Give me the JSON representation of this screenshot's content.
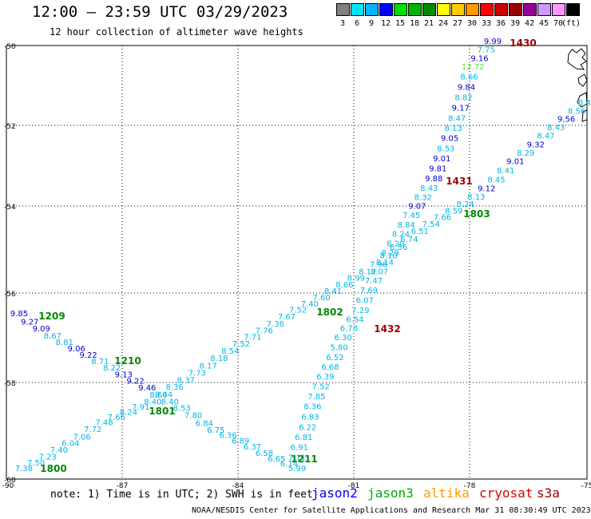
{
  "header": {
    "title": "12:00 – 23:59 UTC 03/29/2023",
    "subtitle": "12 hour collection of altimeter wave heights"
  },
  "legend": {
    "unit": "(ft)",
    "items": [
      {
        "label": "3",
        "color": "#808080"
      },
      {
        "label": "6",
        "color": "#00e5ff"
      },
      {
        "label": "9",
        "color": "#00b4ff"
      },
      {
        "label": "12",
        "color": "#0000ff"
      },
      {
        "label": "15",
        "color": "#00dd00"
      },
      {
        "label": "18",
        "color": "#00b400"
      },
      {
        "label": "21",
        "color": "#008800"
      },
      {
        "label": "24",
        "color": "#ffff00"
      },
      {
        "label": "27",
        "color": "#ffcc00"
      },
      {
        "label": "30",
        "color": "#ff9900"
      },
      {
        "label": "33",
        "color": "#ff0000"
      },
      {
        "label": "36",
        "color": "#cc0000"
      },
      {
        "label": "39",
        "color": "#990000"
      },
      {
        "label": "42",
        "color": "#990099"
      },
      {
        "label": "45",
        "color": "#cc99ff"
      },
      {
        "label": "70",
        "color": "#ff99ff"
      },
      {
        "label": "",
        "color": "#000000"
      }
    ]
  },
  "axes": {
    "lat_labels": [
      "-50",
      "-52",
      "-54",
      "-56",
      "-58",
      "-60"
    ],
    "lon_labels": [
      "-90",
      "-87",
      "-84",
      "-81",
      "-78",
      "-75"
    ]
  },
  "tracks": [
    {
      "color": "#00b4e6",
      "points": [
        [
          "9.99",
          "#0000cc"
        ],
        [
          "7.75",
          ""
        ],
        [
          "9.16",
          "#0000cc"
        ],
        [
          "12.72",
          "#66dd33"
        ],
        [
          "8.66",
          ""
        ],
        [
          "9.84",
          "#0000cc"
        ],
        [
          "8.82",
          ""
        ],
        [
          "9.17",
          "#0000cc"
        ],
        [
          "8.47",
          ""
        ],
        [
          "8.13",
          ""
        ],
        [
          "9.05",
          "#0000cc"
        ],
        [
          "8.53",
          ""
        ],
        [
          "9.01",
          "#0000cc"
        ],
        [
          "9.81",
          "#0000cc"
        ],
        [
          "9.88",
          "#0000cc"
        ],
        [
          "8.43",
          ""
        ],
        [
          "8.32",
          ""
        ],
        [
          "9.07",
          "#0000cc"
        ],
        [
          "7.45",
          ""
        ],
        [
          "8.84",
          ""
        ],
        [
          "8.24",
          ""
        ],
        [
          "8.20",
          ""
        ],
        [
          "8.29",
          ""
        ],
        [
          "8.14",
          ""
        ],
        [
          "8.07",
          ""
        ],
        [
          "7.47",
          ""
        ],
        [
          "7.69",
          ""
        ],
        [
          "6.07",
          ""
        ],
        [
          "7.29",
          ""
        ],
        [
          "6.54",
          ""
        ],
        [
          "6.78",
          ""
        ],
        [
          "6.30",
          ""
        ],
        [
          "5.80",
          ""
        ],
        [
          "6.52",
          ""
        ],
        [
          "6.68",
          ""
        ],
        [
          "6.39",
          ""
        ],
        [
          "7.52",
          ""
        ],
        [
          "7.85",
          ""
        ],
        [
          "8.36",
          ""
        ],
        [
          "6.83",
          ""
        ],
        [
          "6.22",
          ""
        ],
        [
          "6.81",
          ""
        ],
        [
          "6.91",
          ""
        ],
        [
          "7.11",
          ""
        ],
        [
          "5.99",
          ""
        ]
      ]
    },
    {
      "color": "#00b4e6",
      "points": [
        [
          "8.45",
          ""
        ],
        [
          "8.56",
          ""
        ],
        [
          "9.56",
          "#0000cc"
        ],
        [
          "8.43",
          ""
        ],
        [
          "8.47",
          ""
        ],
        [
          "9.32",
          "#0000cc"
        ],
        [
          "8.29",
          ""
        ],
        [
          "9.01",
          "#0000cc"
        ],
        [
          "8.41",
          ""
        ],
        [
          "8.45",
          ""
        ],
        [
          "9.12",
          "#0000cc"
        ],
        [
          "8.13",
          ""
        ],
        [
          "8.24",
          ""
        ],
        [
          "8.59",
          ""
        ],
        [
          "7.66",
          ""
        ],
        [
          "7.54",
          ""
        ],
        [
          "6.51",
          ""
        ],
        [
          "6.74",
          ""
        ],
        [
          "6.56",
          ""
        ],
        [
          "8.10",
          ""
        ],
        [
          "7.96",
          ""
        ],
        [
          "8.12",
          ""
        ],
        [
          "8.99",
          ""
        ],
        [
          "8.66",
          ""
        ],
        [
          "8.41",
          ""
        ],
        [
          "7.60",
          ""
        ],
        [
          "7.40",
          ""
        ],
        [
          "7.52",
          ""
        ],
        [
          "7.67",
          ""
        ],
        [
          "7.36",
          ""
        ],
        [
          "7.76",
          ""
        ],
        [
          "7.71",
          ""
        ],
        [
          "7.52",
          ""
        ],
        [
          "8.54",
          ""
        ],
        [
          "8.18",
          ""
        ],
        [
          "8.17",
          ""
        ],
        [
          "7.73",
          ""
        ],
        [
          "8.37",
          ""
        ],
        [
          "8.36",
          ""
        ],
        [
          "8.44",
          ""
        ],
        [
          "8.40",
          ""
        ],
        [
          "7.91",
          ""
        ],
        [
          "8.24",
          ""
        ],
        [
          "7.66",
          ""
        ],
        [
          "7.48",
          ""
        ],
        [
          "7.72",
          ""
        ],
        [
          "7.06",
          ""
        ],
        [
          "6.04",
          ""
        ],
        [
          "7.40",
          ""
        ],
        [
          "7.23",
          ""
        ],
        [
          "7.50",
          ""
        ],
        [
          "7.38",
          ""
        ]
      ]
    },
    {
      "color": "#00b4e6",
      "points": [
        [
          "9.85",
          "#0000cc"
        ],
        [
          "9.27",
          "#0000cc"
        ],
        [
          "9.09",
          "#0000cc"
        ],
        [
          "8.67",
          ""
        ],
        [
          "8.81",
          ""
        ],
        [
          "9.06",
          "#0000cc"
        ],
        [
          "9.22",
          "#0000cc"
        ],
        [
          "8.71",
          ""
        ],
        [
          "8.22",
          ""
        ],
        [
          "9.13",
          "#0000cc"
        ],
        [
          "9.22",
          "#0000cc"
        ],
        [
          "9.46",
          "#0000cc"
        ],
        [
          "8.60",
          ""
        ],
        [
          "8.40",
          ""
        ],
        [
          "8.53",
          ""
        ],
        [
          "7.80",
          ""
        ],
        [
          "6.84",
          ""
        ],
        [
          "6.75",
          ""
        ],
        [
          "6.36",
          ""
        ],
        [
          "6.89",
          ""
        ],
        [
          "6.37",
          ""
        ],
        [
          "6.58",
          ""
        ],
        [
          "6.65",
          ""
        ],
        [
          "6.14",
          ""
        ]
      ]
    }
  ],
  "times": [
    {
      "label": "1430",
      "color": "#990000"
    },
    {
      "label": "1431",
      "color": "#990000"
    },
    {
      "label": "1432",
      "color": "#990000"
    },
    {
      "label": "1803",
      "color": "#008800"
    },
    {
      "label": "1802",
      "color": "#008800"
    },
    {
      "label": "1801",
      "color": "#008800"
    },
    {
      "label": "1800",
      "color": "#008800"
    },
    {
      "label": "1209",
      "color": "#008800"
    },
    {
      "label": "1210",
      "color": "#008800"
    },
    {
      "label": "1211",
      "color": "#008800"
    }
  ],
  "footer": {
    "note": "note: 1) Time is in UTC; 2) SWH is in feet",
    "satellites": [
      {
        "label": "jason2",
        "color": "#0000ff"
      },
      {
        "label": "jason3",
        "color": "#00aa00"
      },
      {
        "label": "altika",
        "color": "#ff9900"
      },
      {
        "label": "cryosat",
        "color": "#dd0000"
      },
      {
        "label": "s3a",
        "color": "#990000"
      }
    ],
    "credit": "NOAA/NESDIS Center for Satellite Applications and Research    Mar 31 08:30:49 UTC 2023"
  }
}
